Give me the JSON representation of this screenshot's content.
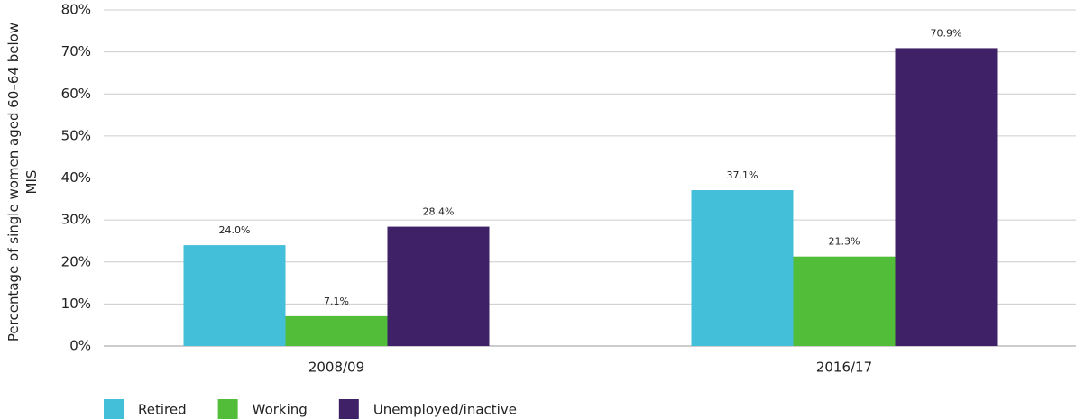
{
  "chart_data": {
    "type": "bar",
    "y_label": "Percentage of single women aged 60–64 below MIS",
    "categories": [
      "2008/09",
      "2016/17"
    ],
    "series": [
      {
        "name": "Retired",
        "color": "#44bfd9",
        "values": [
          24.0,
          37.1
        ],
        "value_labels": [
          "24.0%",
          "37.1%"
        ]
      },
      {
        "name": "Working",
        "color": "#52bd39",
        "values": [
          7.1,
          21.3
        ],
        "value_labels": [
          "7.1%",
          "21.3%"
        ]
      },
      {
        "name": "Unemployed/inactive",
        "color": "#3e2166",
        "values": [
          28.4,
          70.9
        ],
        "value_labels": [
          "28.4%",
          "70.9%"
        ]
      }
    ],
    "ylim": [
      0,
      80
    ],
    "yticks": [
      {
        "value": 0,
        "label": "0%"
      },
      {
        "value": 10,
        "label": "10%"
      },
      {
        "value": 20,
        "label": "20%"
      },
      {
        "value": 30,
        "label": "30%"
      },
      {
        "value": 40,
        "label": "40%"
      },
      {
        "value": 50,
        "label": "50%"
      },
      {
        "value": 60,
        "label": "60%"
      },
      {
        "value": 70,
        "label": "70%"
      },
      {
        "value": 80,
        "label": "80%"
      }
    ],
    "grid": true,
    "legend": "bottom"
  }
}
